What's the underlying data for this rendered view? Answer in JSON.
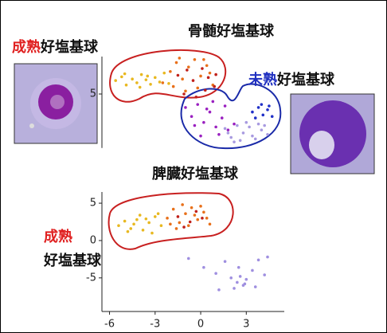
{
  "chart_data": [
    {
      "type": "scatter",
      "title": "骨髄好塩基球",
      "label_mature": {
        "emph": "成熟",
        "rest": "好塩基球"
      },
      "label_immature": {
        "emph": "未熟",
        "rest": "好塩基球"
      },
      "xlim": [
        -6.5,
        5.5
      ],
      "ylim": [
        -2.2,
        10
      ],
      "yticks": [
        5
      ],
      "xticks": [],
      "series": [
        {
          "color": "#e8b820",
          "x": [
            -5.6,
            -5.2,
            -4.9,
            -4.5,
            -4.2,
            -3.9,
            -3.6,
            -3.3,
            -3.0,
            -2.7,
            -2.4,
            -2.1,
            -5.0,
            -4.0,
            -3.5
          ],
          "y": [
            6.8,
            7.3,
            6.2,
            7.0,
            6.5,
            7.6,
            6.9,
            6.3,
            7.2,
            6.6,
            7.8,
            6.4,
            7.7,
            5.9,
            7.4
          ]
        },
        {
          "color": "#e8701a",
          "x": [
            -2.5,
            -2.0,
            -1.6,
            -1.2,
            -0.8,
            -0.4,
            0.0,
            0.4,
            0.8,
            -1.8,
            -1.0,
            -0.2,
            0.6,
            -1.4,
            0.2
          ],
          "y": [
            6.5,
            8.0,
            9.2,
            7.0,
            8.6,
            9.6,
            7.4,
            8.8,
            6.2,
            6.0,
            5.4,
            5.8,
            7.8,
            9.8,
            9.6
          ]
        },
        {
          "color": "#c0201a",
          "x": [
            -1.5,
            -0.9,
            -0.5,
            0.1,
            0.5,
            0.9,
            -1.1,
            -0.3,
            0.3,
            1.0
          ],
          "y": [
            7.5,
            8.2,
            6.8,
            8.4,
            7.2,
            6.0,
            5.0,
            4.6,
            5.5,
            7.6
          ]
        },
        {
          "color": "#9a20c0",
          "x": [
            -1.0,
            -0.6,
            -0.2,
            0.2,
            0.6,
            1.0,
            1.4,
            1.8,
            -0.4,
            0.4,
            1.2,
            2.2,
            0.0,
            0.8,
            1.6
          ],
          "y": [
            3.2,
            2.0,
            3.6,
            1.2,
            2.6,
            0.6,
            1.8,
            0.2,
            0.8,
            3.0,
            -0.4,
            1.0,
            -0.6,
            4.0,
            3.4
          ]
        },
        {
          "color": "#a89ae0",
          "x": [
            1.6,
            2.0,
            2.4,
            2.8,
            3.2,
            3.6,
            4.0,
            4.4,
            2.2,
            3.0,
            3.8,
            2.6,
            3.4,
            4.2,
            1.8
          ],
          "y": [
            0.4,
            -0.8,
            0.8,
            -0.2,
            0.6,
            -1.0,
            0.2,
            -0.4,
            -1.4,
            1.2,
            1.0,
            -1.2,
            -0.6,
            0.8,
            -0.2
          ]
        },
        {
          "color": "#2030c8",
          "x": [
            3.4,
            3.8,
            4.1,
            4.4,
            4.7,
            3.6,
            4.0,
            4.5
          ],
          "y": [
            2.6,
            3.2,
            2.2,
            2.9,
            2.0,
            1.8,
            3.6,
            3.4
          ]
        }
      ]
    },
    {
      "type": "scatter",
      "title": "脾臓好塩基球",
      "label_mature": {
        "emph": "成熟",
        "rest": "好塩基球"
      },
      "xlim": [
        -6.5,
        5.5
      ],
      "ylim": [
        -9.5,
        6.5
      ],
      "xticks": [
        -6,
        -3,
        0,
        3
      ],
      "yticks": [
        5,
        0,
        -5
      ],
      "series": [
        {
          "color": "#e8b820",
          "x": [
            -5.4,
            -5.0,
            -4.6,
            -4.2,
            -3.8,
            -3.4,
            -3.0,
            -2.6,
            -4.8,
            -4.0,
            -3.2,
            -3.6,
            -4.4,
            -2.8
          ],
          "y": [
            2.0,
            2.6,
            1.6,
            2.8,
            1.4,
            2.4,
            3.2,
            2.0,
            1.2,
            3.4,
            1.0,
            2.9,
            2.2,
            3.6
          ]
        },
        {
          "color": "#e8701a",
          "x": [
            -2.2,
            -1.8,
            -1.4,
            -1.0,
            -0.6,
            -0.2,
            0.2,
            0.6,
            -1.6,
            -0.8,
            0.0,
            -1.2,
            -0.4,
            0.4,
            -2.0
          ],
          "y": [
            3.0,
            4.2,
            2.4,
            3.6,
            4.4,
            2.8,
            3.8,
            2.2,
            1.6,
            2.0,
            4.6,
            4.8,
            3.4,
            3.0,
            2.2
          ]
        },
        {
          "color": "#c0201a",
          "x": [
            -1.5,
            -0.7,
            0.1,
            -1.1,
            -0.3
          ],
          "y": [
            3.2,
            2.5,
            3.0,
            1.8,
            3.9
          ]
        },
        {
          "color": "#9f8fe0",
          "x": [
            -0.8,
            0.2,
            1.0,
            1.6,
            2.0,
            2.4,
            2.6,
            2.8,
            3.0,
            3.4,
            3.8,
            4.2,
            2.2,
            2.9,
            1.2,
            4.4,
            3.6,
            2.5
          ],
          "y": [
            -2.4,
            -3.6,
            -4.4,
            -2.8,
            -5.0,
            -5.6,
            -4.8,
            -6.0,
            -5.2,
            -4.0,
            -2.6,
            -4.6,
            -6.4,
            -5.8,
            -6.6,
            -2.2,
            -6.2,
            -3.6
          ]
        }
      ]
    }
  ]
}
